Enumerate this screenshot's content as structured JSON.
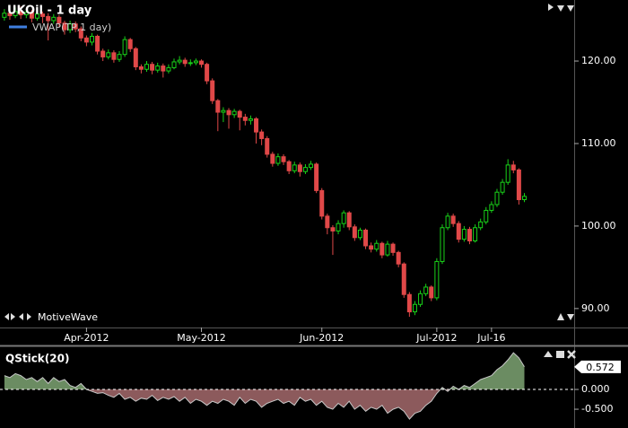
{
  "chart_data": [
    {
      "type": "candlestick",
      "title": "UKOil - 1 day",
      "legend": [
        {
          "name": "VWAP(TP,1 day)",
          "color": "#3f7fe0"
        }
      ],
      "branding": "MotiveWave",
      "up_color": "#19d119",
      "down_color": "#e04848",
      "open": [
        125.3,
        125.8,
        125.5,
        126.0,
        125.6,
        125.9,
        125.2,
        125.7,
        125.4,
        124.9,
        125.3,
        124.6,
        123.8,
        124.5,
        123.9,
        122.8,
        122.3,
        123.0,
        121.2,
        120.5,
        121.0,
        120.2,
        120.8,
        122.6,
        121.5,
        119.3,
        119.0,
        119.6,
        118.9,
        119.4,
        118.8,
        119.2,
        119.9,
        120.1,
        119.7,
        119.8,
        120.0,
        119.6,
        117.6,
        115.2,
        113.8,
        114.0,
        113.5,
        113.9,
        113.2,
        112.8,
        113.0,
        111.4,
        110.6,
        108.7,
        107.6,
        108.4,
        107.8,
        106.7,
        107.4,
        106.6,
        107.1,
        107.5,
        104.3,
        101.2,
        99.8,
        99.4,
        100.3,
        101.6,
        99.9,
        98.6,
        99.5,
        97.6,
        97.2,
        97.9,
        96.5,
        97.8,
        96.8,
        95.4,
        91.7,
        89.6,
        90.5,
        91.8,
        92.6,
        91.3,
        95.7,
        99.8,
        101.2,
        100.3,
        98.4,
        99.6,
        98.2,
        99.8,
        100.5,
        101.9,
        102.6,
        104.1,
        105.3,
        107.4,
        106.8,
        103.2
      ],
      "high": [
        126.3,
        126.4,
        126.5,
        126.6,
        126.3,
        126.2,
        126.1,
        126.0,
        125.8,
        125.7,
        125.6,
        124.9,
        124.9,
        124.8,
        124.2,
        123.1,
        123.4,
        123.2,
        121.5,
        121.4,
        121.3,
        121.2,
        123.0,
        122.8,
        121.7,
        119.6,
        120.0,
        119.9,
        119.8,
        119.7,
        119.6,
        120.3,
        120.6,
        120.4,
        120.2,
        120.3,
        120.2,
        119.8,
        117.9,
        115.4,
        114.4,
        114.3,
        114.2,
        114.1,
        113.6,
        113.4,
        113.2,
        111.7,
        110.9,
        109.0,
        108.8,
        108.7,
        108.0,
        107.8,
        107.7,
        107.5,
        107.9,
        107.7,
        104.6,
        101.5,
        100.1,
        100.7,
        101.9,
        101.8,
        100.2,
        99.8,
        99.7,
        98.0,
        98.3,
        98.1,
        98.2,
        98.0,
        97.0,
        95.6,
        92.0,
        90.9,
        92.2,
        93.0,
        92.8,
        96.1,
        100.2,
        101.6,
        101.5,
        100.6,
        100.0,
        99.9,
        100.2,
        100.9,
        102.3,
        103.0,
        104.5,
        105.7,
        108.1,
        107.9,
        107.0,
        104.0
      ],
      "low": [
        124.9,
        125.0,
        125.2,
        125.1,
        125.2,
        124.7,
        124.9,
        124.6,
        122.5,
        124.5,
        124.1,
        123.2,
        123.4,
        123.5,
        122.4,
        121.8,
        121.9,
        120.8,
        120.0,
        120.2,
        119.8,
        119.9,
        120.5,
        121.1,
        118.9,
        118.5,
        118.7,
        118.4,
        118.6,
        118.0,
        118.5,
        119.0,
        119.6,
        119.3,
        119.4,
        119.5,
        119.2,
        117.2,
        114.8,
        111.5,
        112.6,
        111.8,
        113.1,
        111.6,
        112.2,
        112.3,
        110.0,
        109.8,
        108.3,
        107.2,
        107.3,
        107.4,
        106.3,
        106.4,
        106.0,
        106.3,
        106.8,
        104.0,
        100.8,
        99.0,
        96.5,
        99.0,
        99.8,
        99.5,
        98.2,
        98.3,
        97.2,
        96.8,
        96.9,
        96.1,
        96.3,
        96.4,
        95.0,
        91.3,
        89.0,
        89.2,
        90.2,
        91.5,
        90.9,
        91.0,
        95.4,
        99.5,
        99.9,
        98.0,
        98.1,
        97.8,
        98.0,
        99.5,
        100.2,
        101.6,
        102.3,
        103.8,
        105.0,
        106.4,
        102.6,
        102.9
      ],
      "close": [
        125.8,
        125.5,
        126.0,
        125.6,
        125.9,
        125.2,
        125.7,
        125.4,
        124.9,
        125.3,
        124.6,
        123.8,
        124.5,
        123.9,
        122.8,
        122.3,
        123.0,
        121.2,
        120.5,
        121.0,
        120.2,
        120.8,
        122.6,
        121.5,
        119.3,
        119.0,
        119.6,
        118.9,
        119.4,
        118.8,
        119.2,
        119.9,
        120.1,
        119.7,
        119.8,
        120.0,
        119.6,
        117.6,
        115.2,
        113.8,
        114.0,
        113.5,
        113.9,
        113.2,
        112.8,
        113.0,
        111.4,
        110.6,
        108.7,
        107.6,
        108.4,
        107.8,
        106.7,
        107.4,
        106.6,
        107.1,
        107.5,
        104.3,
        101.2,
        99.8,
        99.4,
        100.3,
        101.6,
        99.9,
        98.6,
        99.5,
        97.6,
        97.2,
        97.9,
        96.5,
        97.8,
        96.8,
        95.4,
        91.7,
        89.6,
        90.5,
        91.8,
        92.6,
        91.3,
        95.7,
        99.8,
        101.2,
        100.3,
        98.4,
        99.6,
        98.2,
        99.8,
        100.5,
        101.9,
        102.6,
        104.1,
        105.3,
        107.4,
        106.8,
        103.2,
        103.6
      ],
      "xlim": [
        -0.8,
        104.1
      ],
      "xticks": [
        {
          "value": 15,
          "label": "Apr-2012"
        },
        {
          "value": 36,
          "label": "May-2012"
        },
        {
          "value": 58,
          "label": "Jun-2012"
        },
        {
          "value": 79,
          "label": "Jul-2012"
        },
        {
          "value": 89,
          "label": "Jul-16"
        }
      ],
      "ylim": [
        87.7,
        127.4
      ],
      "yticks": [
        {
          "value": 90,
          "label": "90.00"
        },
        {
          "value": 100,
          "label": "100.00"
        },
        {
          "value": 110,
          "label": "110.00"
        },
        {
          "value": 120,
          "label": "120.00"
        }
      ]
    },
    {
      "type": "area",
      "title": "QStick(20)",
      "pos_color": "#6b8c62",
      "neg_color": "#8c5a5c",
      "line_color": "#c8c8c8",
      "zero_line": true,
      "values": [
        0.35,
        0.3,
        0.4,
        0.35,
        0.25,
        0.3,
        0.2,
        0.3,
        0.15,
        0.3,
        0.2,
        0.25,
        0.1,
        0.05,
        0.15,
        0.0,
        -0.05,
        -0.1,
        -0.08,
        -0.15,
        -0.2,
        -0.1,
        -0.25,
        -0.2,
        -0.3,
        -0.22,
        -0.25,
        -0.15,
        -0.28,
        -0.2,
        -0.25,
        -0.18,
        -0.3,
        -0.2,
        -0.35,
        -0.25,
        -0.3,
        -0.4,
        -0.3,
        -0.35,
        -0.25,
        -0.3,
        -0.4,
        -0.2,
        -0.35,
        -0.25,
        -0.3,
        -0.45,
        -0.35,
        -0.3,
        -0.25,
        -0.35,
        -0.3,
        -0.4,
        -0.2,
        -0.3,
        -0.25,
        -0.4,
        -0.3,
        -0.45,
        -0.5,
        -0.35,
        -0.45,
        -0.3,
        -0.5,
        -0.4,
        -0.55,
        -0.45,
        -0.5,
        -0.4,
        -0.6,
        -0.5,
        -0.45,
        -0.55,
        -0.75,
        -0.6,
        -0.55,
        -0.4,
        -0.3,
        -0.1,
        0.05,
        -0.05,
        0.08,
        0.0,
        0.1,
        0.05,
        0.15,
        0.25,
        0.3,
        0.35,
        0.5,
        0.6,
        0.75,
        0.93,
        0.8,
        0.572
      ],
      "ylim": [
        -0.93,
        1.045
      ],
      "yticks": [
        {
          "value": 0,
          "label": "0.000"
        },
        {
          "value": -0.5,
          "label": "-0.500"
        }
      ]
    }
  ]
}
